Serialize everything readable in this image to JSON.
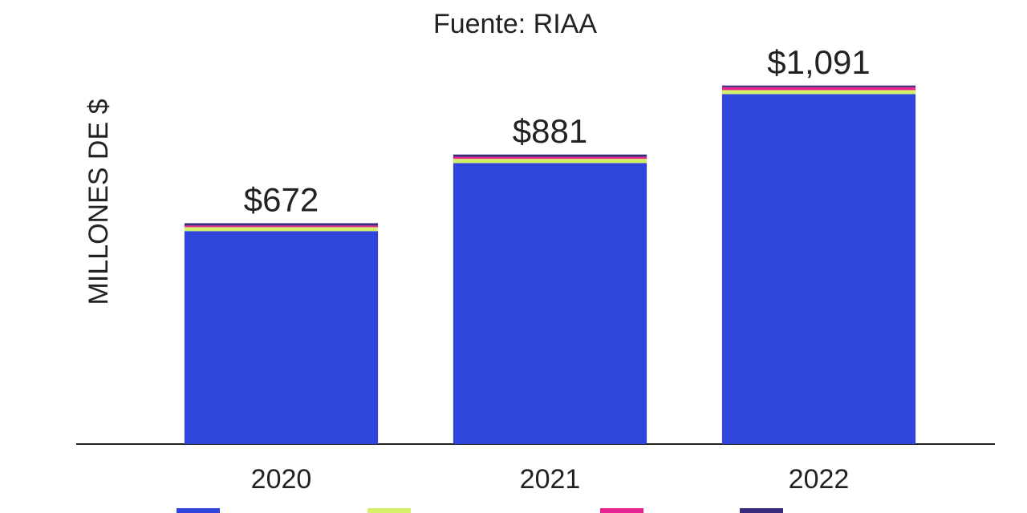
{
  "chart_data": {
    "type": "bar",
    "stacked": true,
    "title": "Fuente: RIAA",
    "ylabel": "MILLONES DE $",
    "categories": [
      "2020",
      "2021",
      "2022"
    ],
    "series": [
      {
        "color": "#3045db",
        "values": [
          648,
          855,
          1065
        ]
      },
      {
        "color": "#d4f06a",
        "values": [
          12,
          13,
          12
        ]
      },
      {
        "color": "#e6238f",
        "values": [
          5,
          6,
          9
        ]
      },
      {
        "color": "#3a2b7a",
        "values": [
          7,
          7,
          5
        ]
      }
    ],
    "totals": [
      672,
      881,
      1091
    ],
    "total_labels": [
      "$672",
      "$881",
      "$1,091"
    ],
    "ylim": [
      0,
      1200
    ]
  }
}
